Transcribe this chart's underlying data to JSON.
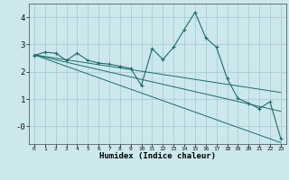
{
  "xlabel": "Humidex (Indice chaleur)",
  "background_color": "#cce8ec",
  "grid_color": "#aacdd4",
  "line_color": "#1a6e6a",
  "x_data": [
    0,
    1,
    2,
    3,
    4,
    5,
    6,
    7,
    8,
    9,
    10,
    11,
    12,
    13,
    14,
    15,
    16,
    17,
    18,
    19,
    20,
    21,
    22,
    23
  ],
  "y_main": [
    2.6,
    2.72,
    2.68,
    2.42,
    2.68,
    2.42,
    2.32,
    2.28,
    2.2,
    2.12,
    1.5,
    2.85,
    2.45,
    2.9,
    3.55,
    4.18,
    3.25,
    2.9,
    1.75,
    1.02,
    0.85,
    0.65,
    0.9,
    -0.45
  ],
  "y_trend1": [
    2.62,
    2.56,
    2.5,
    2.44,
    2.38,
    2.32,
    2.26,
    2.2,
    2.14,
    2.08,
    2.02,
    1.96,
    1.9,
    1.84,
    1.78,
    1.72,
    1.66,
    1.6,
    1.54,
    1.48,
    1.42,
    1.36,
    1.3,
    1.24
  ],
  "y_trend2": [
    2.62,
    2.53,
    2.44,
    2.35,
    2.26,
    2.17,
    2.08,
    1.99,
    1.9,
    1.81,
    1.72,
    1.63,
    1.54,
    1.45,
    1.36,
    1.27,
    1.18,
    1.09,
    1.0,
    0.91,
    0.82,
    0.73,
    0.64,
    0.55
  ],
  "y_trend3": [
    2.62,
    2.48,
    2.34,
    2.2,
    2.06,
    1.92,
    1.78,
    1.64,
    1.5,
    1.36,
    1.22,
    1.08,
    0.94,
    0.8,
    0.66,
    0.52,
    0.38,
    0.24,
    0.1,
    -0.04,
    -0.18,
    -0.32,
    -0.46,
    -0.6
  ],
  "xlim": [
    -0.5,
    23.5
  ],
  "ylim": [
    -0.65,
    4.5
  ],
  "yticks": [
    0,
    1,
    2,
    3,
    4
  ],
  "ytick_labels": [
    "-0",
    "1",
    "2",
    "3",
    "4"
  ],
  "xtick_labels": [
    "0",
    "1",
    "2",
    "3",
    "4",
    "5",
    "6",
    "7",
    "8",
    "9",
    "10",
    "11",
    "12",
    "13",
    "14",
    "15",
    "16",
    "17",
    "18",
    "19",
    "20",
    "21",
    "22",
    "23"
  ]
}
